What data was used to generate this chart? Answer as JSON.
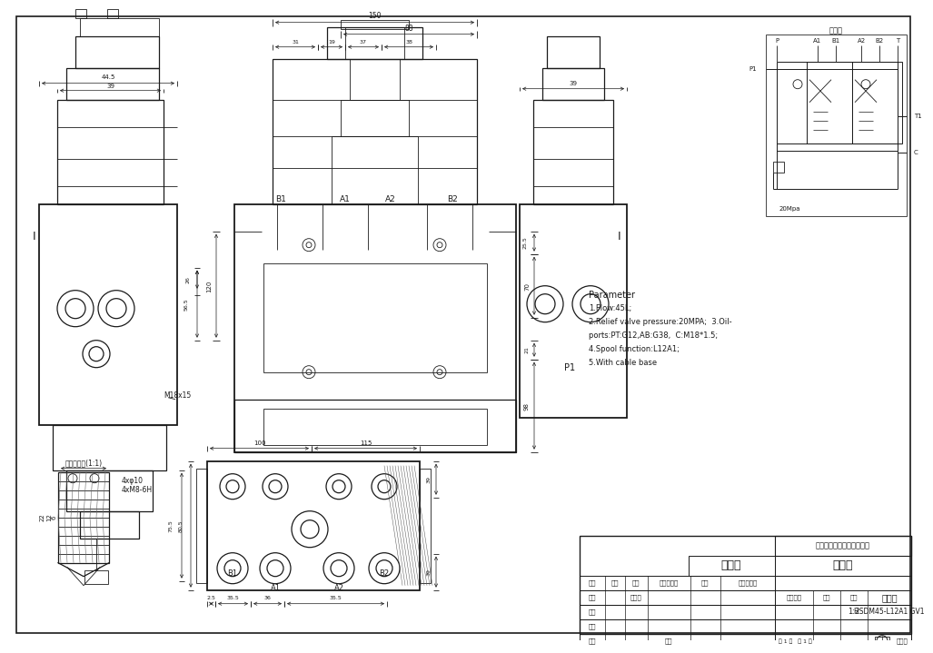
{
  "bg_color": "#f0f0f0",
  "line_color": "#1a1a1a",
  "param_text": [
    "Parameter",
    "1.Flow:45L;",
    "2.Relief valve pressure:20MPA;  3.Oil-",
    "ports:PT:G12,AB:G38,  C:M18*1.5;",
    "4.Spool function:L12A1;",
    "5.With cable base"
  ],
  "company": "山东奥敏液压科技有限公司",
  "drawing_name": "外形图",
  "part_name": "直装阀",
  "part_number": "HSDM45-L12A1 GV1",
  "scale": "1:2",
  "schematic_title": "原理图",
  "detail_title": "局部放大图(1:1)"
}
